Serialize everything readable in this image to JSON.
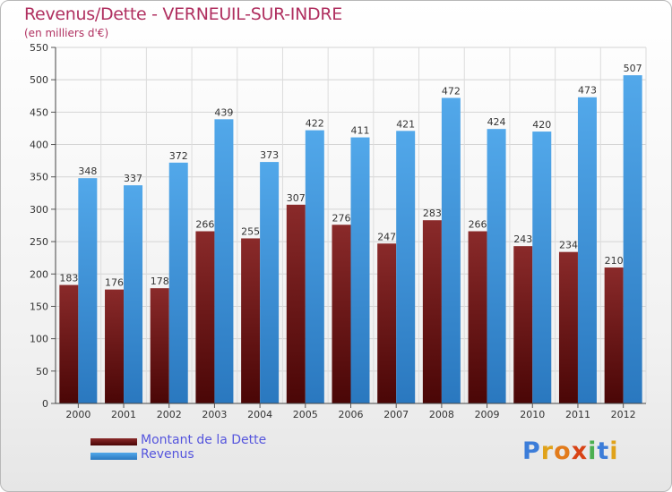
{
  "header": {
    "title": "Revenus/Dette - VERNEUIL-SUR-INDRE",
    "subtitle": "(en milliers d'€)"
  },
  "legend": {
    "items": [
      {
        "label": "Montant de la Dette",
        "color": "#6b1a1a"
      },
      {
        "label": "Revenus",
        "color": "#3d94db"
      }
    ]
  },
  "logo": {
    "text": "Proxiti",
    "letters": [
      "P",
      "r",
      "o",
      "x",
      "i",
      "t",
      "i"
    ],
    "colors": [
      "#3c7dd9",
      "#e0a21a",
      "#e27b1b",
      "#d84315",
      "#4caf50",
      "#3c7dd9",
      "#e0a21a"
    ]
  },
  "chart_data": {
    "type": "bar",
    "categories": [
      "2000",
      "2001",
      "2002",
      "2003",
      "2004",
      "2005",
      "2006",
      "2007",
      "2008",
      "2009",
      "2010",
      "2011",
      "2012"
    ],
    "series": [
      {
        "name": "Montant de la Dette",
        "values": [
          183,
          176,
          178,
          266,
          255,
          307,
          276,
          247,
          283,
          266,
          243,
          234,
          210
        ],
        "color": "#7a1c1c"
      },
      {
        "name": "Revenus",
        "values": [
          348,
          337,
          372,
          439,
          373,
          422,
          411,
          421,
          472,
          424,
          420,
          473,
          507
        ],
        "color": "#3d94db"
      }
    ],
    "ylim": [
      0,
      550
    ],
    "yticks": [
      0,
      50,
      100,
      150,
      200,
      250,
      300,
      350,
      400,
      450,
      500,
      550
    ],
    "grid": true,
    "data_labels": true
  }
}
